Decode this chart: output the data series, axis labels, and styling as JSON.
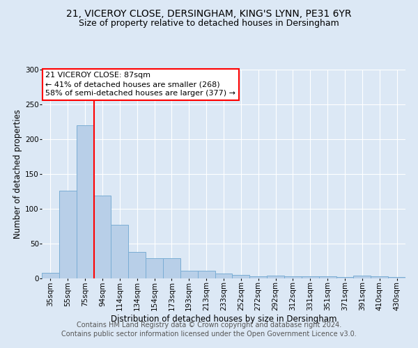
{
  "title_line1": "21, VICEROY CLOSE, DERSINGHAM, KING'S LYNN, PE31 6YR",
  "title_line2": "Size of property relative to detached houses in Dersingham",
  "xlabel": "Distribution of detached houses by size in Dersingham",
  "ylabel": "Number of detached properties",
  "categories": [
    "35sqm",
    "55sqm",
    "75sqm",
    "94sqm",
    "114sqm",
    "134sqm",
    "154sqm",
    "173sqm",
    "193sqm",
    "213sqm",
    "233sqm",
    "252sqm",
    "272sqm",
    "292sqm",
    "312sqm",
    "331sqm",
    "351sqm",
    "371sqm",
    "391sqm",
    "410sqm",
    "430sqm"
  ],
  "values": [
    8,
    126,
    220,
    119,
    77,
    38,
    29,
    29,
    11,
    11,
    7,
    5,
    3,
    4,
    3,
    3,
    3,
    2,
    4,
    3,
    2
  ],
  "bar_color": "#b8cfe8",
  "bar_edge_color": "#7aadd4",
  "vline_color": "red",
  "vline_index": 2,
  "annotation_text": "21 VICEROY CLOSE: 87sqm\n← 41% of detached houses are smaller (268)\n58% of semi-detached houses are larger (377) →",
  "annotation_box_facecolor": "white",
  "annotation_box_edgecolor": "red",
  "ylim": [
    0,
    300
  ],
  "yticks": [
    0,
    50,
    100,
    150,
    200,
    250,
    300
  ],
  "footer_line1": "Contains HM Land Registry data © Crown copyright and database right 2024.",
  "footer_line2": "Contains public sector information licensed under the Open Government Licence v3.0.",
  "background_color": "#dce8f5",
  "title_fontsize": 10,
  "subtitle_fontsize": 9,
  "axis_label_fontsize": 8.5,
  "tick_fontsize": 7.5,
  "annotation_fontsize": 8,
  "footer_fontsize": 7
}
